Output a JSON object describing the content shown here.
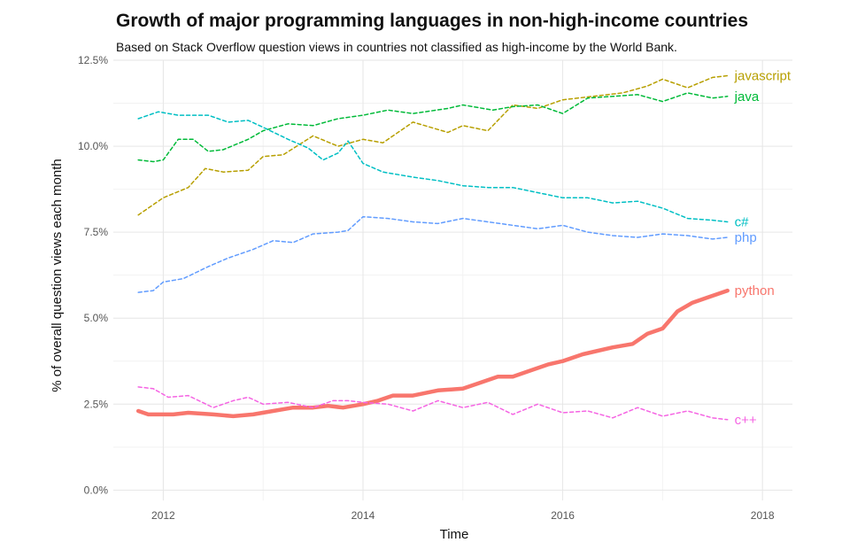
{
  "chart_data": {
    "type": "line",
    "title": "Growth of major programming languages in non-high-income countries",
    "subtitle": "Based on Stack Overflow question views in countries not classified as high-income by the World Bank.",
    "xlabel": "Time",
    "ylabel": "% of overall question views each month",
    "xlim": [
      2011.5,
      2018.3
    ],
    "ylim": [
      -0.3,
      12.5
    ],
    "x_ticks": [
      2012,
      2014,
      2016,
      2018
    ],
    "x_tick_labels": [
      "2012",
      "2014",
      "2016",
      "2018"
    ],
    "y_ticks": [
      0,
      2.5,
      5,
      7.5,
      10,
      12.5
    ],
    "y_tick_labels": [
      "0.0%",
      "2.5%",
      "5.0%",
      "7.5%",
      "10.0%",
      "12.5%"
    ],
    "grid": true,
    "legend": "direct-labels-right",
    "series": [
      {
        "name": "javascript",
        "color": "#B79F00",
        "style": "dashed",
        "points": [
          [
            2011.75,
            8.0
          ],
          [
            2012.0,
            8.5
          ],
          [
            2012.25,
            8.8
          ],
          [
            2012.42,
            9.35
          ],
          [
            2012.6,
            9.25
          ],
          [
            2012.85,
            9.3
          ],
          [
            2013.0,
            9.7
          ],
          [
            2013.2,
            9.75
          ],
          [
            2013.5,
            10.3
          ],
          [
            2013.75,
            10.0
          ],
          [
            2014.0,
            10.2
          ],
          [
            2014.2,
            10.1
          ],
          [
            2014.5,
            10.7
          ],
          [
            2014.85,
            10.4
          ],
          [
            2015.0,
            10.6
          ],
          [
            2015.25,
            10.45
          ],
          [
            2015.5,
            11.2
          ],
          [
            2015.75,
            11.1
          ],
          [
            2016.0,
            11.35
          ],
          [
            2016.3,
            11.45
          ],
          [
            2016.6,
            11.55
          ],
          [
            2016.85,
            11.75
          ],
          [
            2017.0,
            11.95
          ],
          [
            2017.25,
            11.7
          ],
          [
            2017.5,
            12.0
          ],
          [
            2017.65,
            12.05
          ]
        ]
      },
      {
        "name": "java",
        "color": "#00BA38",
        "style": "dashed",
        "points": [
          [
            2011.75,
            9.6
          ],
          [
            2011.9,
            9.55
          ],
          [
            2012.0,
            9.6
          ],
          [
            2012.15,
            10.2
          ],
          [
            2012.3,
            10.2
          ],
          [
            2012.45,
            9.85
          ],
          [
            2012.6,
            9.9
          ],
          [
            2012.85,
            10.2
          ],
          [
            2013.0,
            10.45
          ],
          [
            2013.25,
            10.65
          ],
          [
            2013.5,
            10.6
          ],
          [
            2013.75,
            10.8
          ],
          [
            2014.0,
            10.9
          ],
          [
            2014.25,
            11.05
          ],
          [
            2014.5,
            10.95
          ],
          [
            2014.85,
            11.1
          ],
          [
            2015.0,
            11.2
          ],
          [
            2015.3,
            11.05
          ],
          [
            2015.5,
            11.15
          ],
          [
            2015.75,
            11.2
          ],
          [
            2016.0,
            10.95
          ],
          [
            2016.25,
            11.4
          ],
          [
            2016.5,
            11.45
          ],
          [
            2016.75,
            11.5
          ],
          [
            2017.0,
            11.3
          ],
          [
            2017.25,
            11.55
          ],
          [
            2017.5,
            11.4
          ],
          [
            2017.65,
            11.45
          ]
        ]
      },
      {
        "name": "c#",
        "color": "#00BFC4",
        "style": "dashed",
        "points": [
          [
            2011.75,
            10.8
          ],
          [
            2011.95,
            11.0
          ],
          [
            2012.15,
            10.9
          ],
          [
            2012.45,
            10.9
          ],
          [
            2012.65,
            10.7
          ],
          [
            2012.85,
            10.75
          ],
          [
            2013.0,
            10.55
          ],
          [
            2013.25,
            10.2
          ],
          [
            2013.45,
            9.95
          ],
          [
            2013.6,
            9.6
          ],
          [
            2013.75,
            9.8
          ],
          [
            2013.85,
            10.15
          ],
          [
            2014.0,
            9.5
          ],
          [
            2014.2,
            9.25
          ],
          [
            2014.5,
            9.1
          ],
          [
            2014.75,
            9.0
          ],
          [
            2015.0,
            8.85
          ],
          [
            2015.25,
            8.8
          ],
          [
            2015.5,
            8.8
          ],
          [
            2015.75,
            8.65
          ],
          [
            2016.0,
            8.5
          ],
          [
            2016.25,
            8.5
          ],
          [
            2016.5,
            8.35
          ],
          [
            2016.75,
            8.4
          ],
          [
            2017.0,
            8.2
          ],
          [
            2017.25,
            7.9
          ],
          [
            2017.5,
            7.85
          ],
          [
            2017.65,
            7.8
          ]
        ]
      },
      {
        "name": "php",
        "color": "#619CFF",
        "style": "dashed",
        "points": [
          [
            2011.75,
            5.75
          ],
          [
            2011.9,
            5.8
          ],
          [
            2012.0,
            6.05
          ],
          [
            2012.2,
            6.15
          ],
          [
            2012.45,
            6.5
          ],
          [
            2012.65,
            6.75
          ],
          [
            2012.9,
            7.0
          ],
          [
            2013.1,
            7.25
          ],
          [
            2013.3,
            7.2
          ],
          [
            2013.5,
            7.45
          ],
          [
            2013.75,
            7.5
          ],
          [
            2013.85,
            7.55
          ],
          [
            2014.0,
            7.95
          ],
          [
            2014.25,
            7.9
          ],
          [
            2014.5,
            7.8
          ],
          [
            2014.75,
            7.75
          ],
          [
            2015.0,
            7.9
          ],
          [
            2015.25,
            7.8
          ],
          [
            2015.5,
            7.7
          ],
          [
            2015.75,
            7.6
          ],
          [
            2016.0,
            7.7
          ],
          [
            2016.25,
            7.5
          ],
          [
            2016.5,
            7.4
          ],
          [
            2016.75,
            7.35
          ],
          [
            2017.0,
            7.45
          ],
          [
            2017.25,
            7.4
          ],
          [
            2017.5,
            7.3
          ],
          [
            2017.65,
            7.35
          ]
        ]
      },
      {
        "name": "python",
        "color": "#F8766D",
        "style": "solid",
        "points": [
          [
            2011.75,
            2.3
          ],
          [
            2011.85,
            2.2
          ],
          [
            2012.1,
            2.2
          ],
          [
            2012.25,
            2.25
          ],
          [
            2012.5,
            2.2
          ],
          [
            2012.7,
            2.15
          ],
          [
            2012.9,
            2.2
          ],
          [
            2013.1,
            2.3
          ],
          [
            2013.3,
            2.4
          ],
          [
            2013.5,
            2.4
          ],
          [
            2013.65,
            2.45
          ],
          [
            2013.8,
            2.4
          ],
          [
            2014.0,
            2.5
          ],
          [
            2014.15,
            2.6
          ],
          [
            2014.3,
            2.75
          ],
          [
            2014.5,
            2.75
          ],
          [
            2014.75,
            2.9
          ],
          [
            2015.0,
            2.95
          ],
          [
            2015.15,
            3.1
          ],
          [
            2015.35,
            3.3
          ],
          [
            2015.5,
            3.3
          ],
          [
            2015.65,
            3.45
          ],
          [
            2015.85,
            3.65
          ],
          [
            2016.0,
            3.75
          ],
          [
            2016.2,
            3.95
          ],
          [
            2016.5,
            4.15
          ],
          [
            2016.7,
            4.25
          ],
          [
            2016.85,
            4.55
          ],
          [
            2017.0,
            4.7
          ],
          [
            2017.15,
            5.2
          ],
          [
            2017.3,
            5.45
          ],
          [
            2017.45,
            5.6
          ],
          [
            2017.55,
            5.7
          ],
          [
            2017.65,
            5.8
          ]
        ]
      },
      {
        "name": "c++",
        "color": "#F564E3",
        "style": "dashed",
        "points": [
          [
            2011.75,
            3.0
          ],
          [
            2011.9,
            2.95
          ],
          [
            2012.05,
            2.7
          ],
          [
            2012.25,
            2.75
          ],
          [
            2012.5,
            2.4
          ],
          [
            2012.7,
            2.6
          ],
          [
            2012.85,
            2.7
          ],
          [
            2013.0,
            2.5
          ],
          [
            2013.25,
            2.55
          ],
          [
            2013.5,
            2.4
          ],
          [
            2013.7,
            2.6
          ],
          [
            2013.85,
            2.6
          ],
          [
            2014.0,
            2.55
          ],
          [
            2014.25,
            2.5
          ],
          [
            2014.5,
            2.3
          ],
          [
            2014.75,
            2.6
          ],
          [
            2015.0,
            2.4
          ],
          [
            2015.25,
            2.55
          ],
          [
            2015.5,
            2.2
          ],
          [
            2015.75,
            2.5
          ],
          [
            2016.0,
            2.25
          ],
          [
            2016.25,
            2.3
          ],
          [
            2016.5,
            2.1
          ],
          [
            2016.75,
            2.4
          ],
          [
            2017.0,
            2.15
          ],
          [
            2017.25,
            2.3
          ],
          [
            2017.5,
            2.1
          ],
          [
            2017.65,
            2.05
          ]
        ]
      }
    ]
  }
}
